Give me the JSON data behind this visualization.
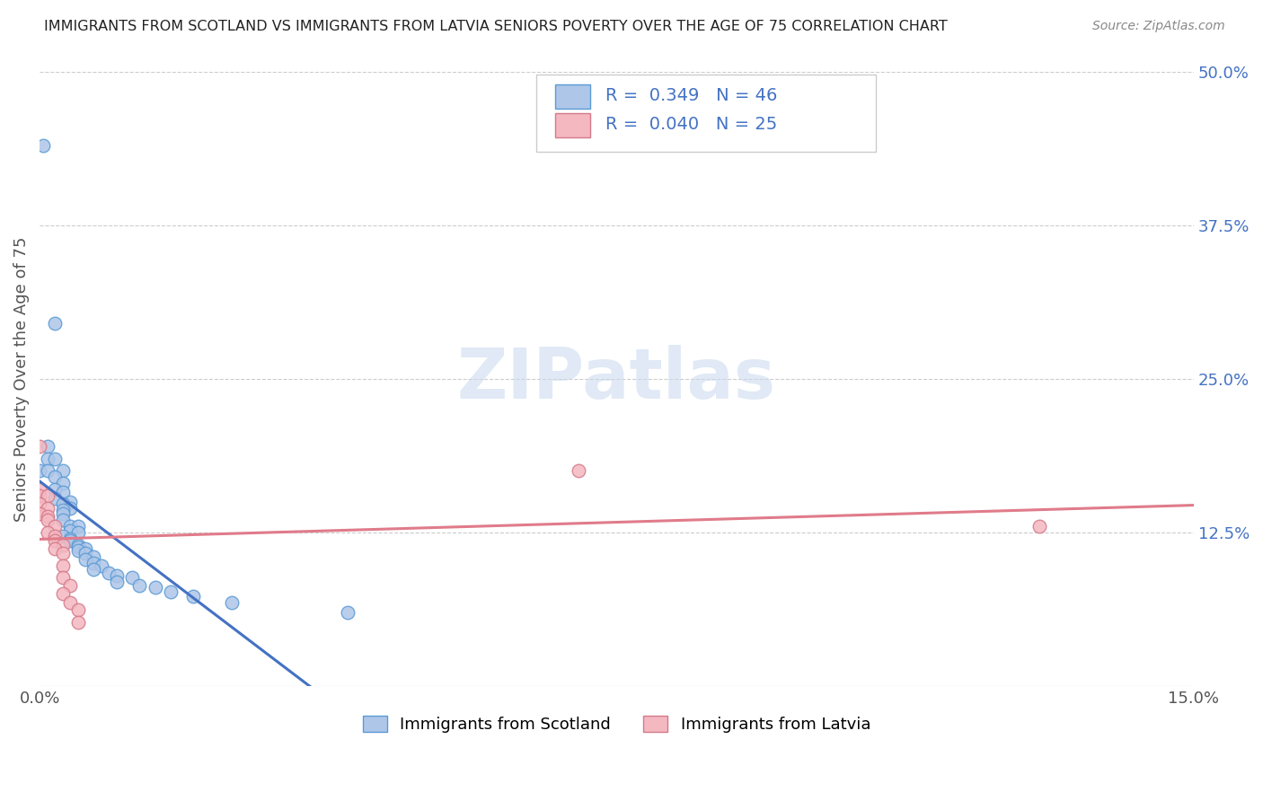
{
  "title": "IMMIGRANTS FROM SCOTLAND VS IMMIGRANTS FROM LATVIA SENIORS POVERTY OVER THE AGE OF 75 CORRELATION CHART",
  "source": "Source: ZipAtlas.com",
  "ylabel": "Seniors Poverty Over the Age of 75",
  "xlim": [
    0.0,
    0.15
  ],
  "ylim": [
    0.0,
    0.5
  ],
  "xtick_labels": [
    "0.0%",
    "15.0%"
  ],
  "ytick_labels_right": [
    "50.0%",
    "37.5%",
    "25.0%",
    "12.5%"
  ],
  "ytick_values_right": [
    0.5,
    0.375,
    0.25,
    0.125
  ],
  "scotland_color": "#aec6e8",
  "scotland_edge": "#5b9bd5",
  "latvia_color": "#f4b8c1",
  "latvia_edge": "#d47a8a",
  "legend_box_scotland": "#aec6e8",
  "legend_box_latvia": "#f4b8c1",
  "legend_text_color": "#4472c4",
  "R_scotland": 0.349,
  "N_scotland": 46,
  "R_latvia": 0.04,
  "N_latvia": 25,
  "trend_scotland_color": "#4472c4",
  "trend_latvia_color": "#e07b8a",
  "trend_dashed_color": "#aaaaaa",
  "watermark": "ZIPatlas",
  "scotland_points": [
    [
      0.0005,
      0.44
    ],
    [
      0.002,
      0.295
    ],
    [
      0.0,
      0.175
    ],
    [
      0.001,
      0.195
    ],
    [
      0.001,
      0.185
    ],
    [
      0.002,
      0.185
    ],
    [
      0.001,
      0.175
    ],
    [
      0.003,
      0.175
    ],
    [
      0.002,
      0.17
    ],
    [
      0.003,
      0.165
    ],
    [
      0.002,
      0.16
    ],
    [
      0.003,
      0.158
    ],
    [
      0.002,
      0.153
    ],
    [
      0.004,
      0.15
    ],
    [
      0.003,
      0.148
    ],
    [
      0.004,
      0.145
    ],
    [
      0.003,
      0.143
    ],
    [
      0.003,
      0.14
    ],
    [
      0.003,
      0.135
    ],
    [
      0.004,
      0.13
    ],
    [
      0.005,
      0.13
    ],
    [
      0.004,
      0.126
    ],
    [
      0.005,
      0.125
    ],
    [
      0.003,
      0.122
    ],
    [
      0.004,
      0.12
    ],
    [
      0.004,
      0.118
    ],
    [
      0.005,
      0.115
    ],
    [
      0.005,
      0.113
    ],
    [
      0.006,
      0.112
    ],
    [
      0.005,
      0.11
    ],
    [
      0.006,
      0.108
    ],
    [
      0.007,
      0.105
    ],
    [
      0.006,
      0.103
    ],
    [
      0.007,
      0.1
    ],
    [
      0.008,
      0.098
    ],
    [
      0.007,
      0.095
    ],
    [
      0.009,
      0.092
    ],
    [
      0.01,
      0.09
    ],
    [
      0.012,
      0.088
    ],
    [
      0.01,
      0.085
    ],
    [
      0.013,
      0.082
    ],
    [
      0.015,
      0.08
    ],
    [
      0.017,
      0.077
    ],
    [
      0.02,
      0.073
    ],
    [
      0.025,
      0.068
    ],
    [
      0.04,
      0.06
    ]
  ],
  "latvia_points": [
    [
      0.0,
      0.195
    ],
    [
      0.0,
      0.16
    ],
    [
      0.0,
      0.155
    ],
    [
      0.001,
      0.155
    ],
    [
      0.0,
      0.148
    ],
    [
      0.001,
      0.145
    ],
    [
      0.0,
      0.14
    ],
    [
      0.001,
      0.138
    ],
    [
      0.001,
      0.135
    ],
    [
      0.002,
      0.13
    ],
    [
      0.001,
      0.125
    ],
    [
      0.002,
      0.122
    ],
    [
      0.002,
      0.118
    ],
    [
      0.003,
      0.115
    ],
    [
      0.002,
      0.112
    ],
    [
      0.003,
      0.108
    ],
    [
      0.003,
      0.098
    ],
    [
      0.003,
      0.088
    ],
    [
      0.004,
      0.082
    ],
    [
      0.003,
      0.075
    ],
    [
      0.004,
      0.068
    ],
    [
      0.005,
      0.062
    ],
    [
      0.005,
      0.052
    ],
    [
      0.07,
      0.175
    ],
    [
      0.13,
      0.13
    ]
  ]
}
